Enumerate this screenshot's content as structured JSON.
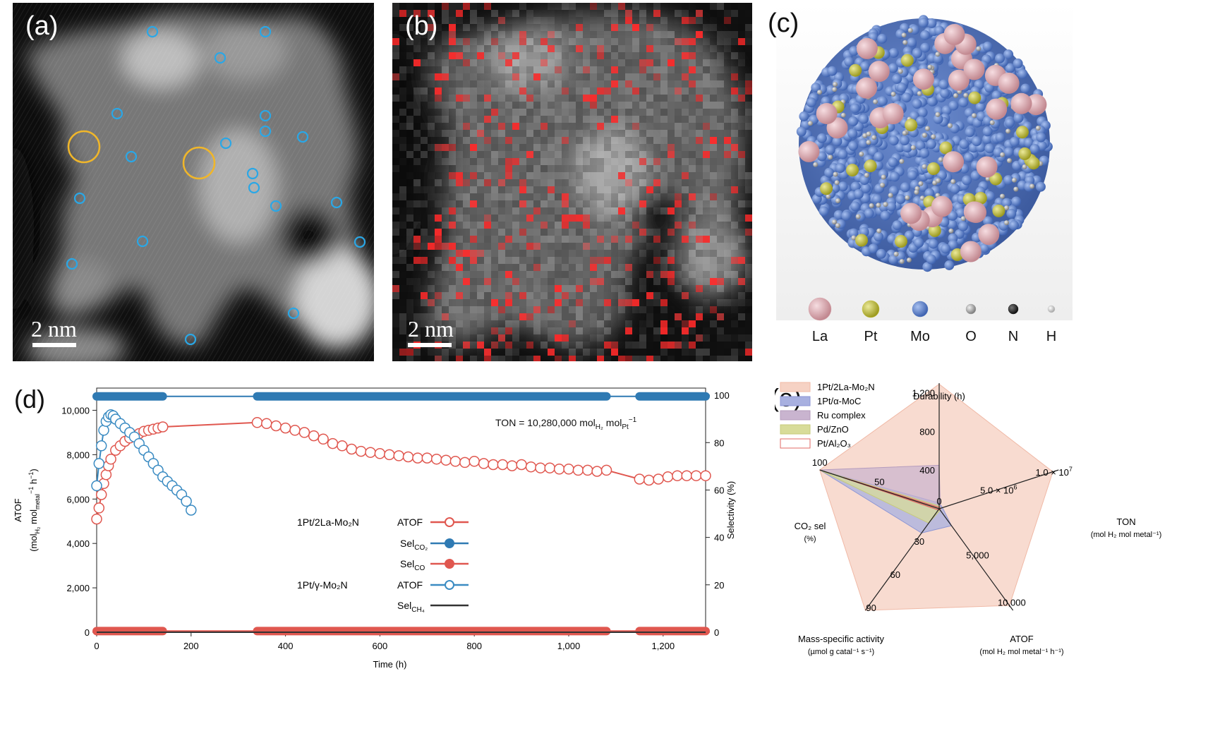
{
  "panel_a": {
    "label": "(a)",
    "scale_text": "2 nm"
  },
  "panel_b": {
    "label": "(b)",
    "scale_text": "2 nm"
  },
  "panel_c": {
    "label": "(c)",
    "atom_legend": [
      "La",
      "Pt",
      "Mo",
      "O",
      "N",
      "H"
    ],
    "atom_colors": [
      "#d9a7ae",
      "#c9c43a",
      "#5b7fc6",
      "#a8a8a8",
      "#2b2b2b",
      "#c8c8c8"
    ]
  },
  "panel_d": {
    "label": "(d)",
    "annotation": "TON = 10,280,000 mol",
    "annotation_sub1": "H₂",
    "annotation_mid": " mol",
    "annotation_sub2": "Pt",
    "annotation_sup": "−1",
    "legend": {
      "group1": "1Pt/2La-Mo₂N",
      "group2": "1Pt/γ-Mo₂N",
      "atof": "ATOF",
      "sel_co2": "Sel",
      "sel_co2_sub": "CO₂",
      "sel_co": "Sel",
      "sel_co_sub": "CO",
      "sel_ch4": "Sel",
      "sel_ch4_sub": "CH₄",
      "atof2": "ATOF"
    }
  },
  "panel_e": {
    "label": "(e)",
    "legend": [
      "1Pt/2La-Mo₂N",
      "1Pt/α-MoC",
      "Ru complex",
      "Pd/ZnO",
      "Pt/Al₂O₃"
    ],
    "legend_colors": [
      "#f6d2c4",
      "#a8b0e0",
      "#c9b4cf",
      "#d8dc99",
      "#ffffff"
    ],
    "legend_borders": [
      "#f0b9a6",
      "#8c95d4",
      "#b59cbd",
      "#c7cb7a",
      "#e06a66"
    ]
  },
  "chart_data": [
    {
      "type": "scatter",
      "panel": "d",
      "xlabel": "Time (h)",
      "ylabel_left": "ATOF (mol H₂ mol metal⁻¹ h⁻¹)",
      "ylabel_right": "Selectivity (%)",
      "xlim": [
        0,
        1290
      ],
      "ylim_left": [
        0,
        11000
      ],
      "ylim_right": [
        0,
        103
      ],
      "x_ticks": [
        "0",
        "200",
        "400",
        "600",
        "800",
        "1,000",
        "1,200"
      ],
      "x_tick_values": [
        0,
        200,
        400,
        600,
        800,
        1000,
        1200
      ],
      "y_left_ticks": [
        "0",
        "2,000",
        "4,000",
        "6,000",
        "8,000",
        "10,000"
      ],
      "y_left_tick_values": [
        0,
        2000,
        4000,
        6000,
        8000,
        10000
      ],
      "y_right_ticks": [
        "0",
        "20",
        "40",
        "60",
        "80",
        "100"
      ],
      "y_right_tick_values": [
        0,
        20,
        40,
        60,
        80,
        100
      ],
      "series": [
        {
          "name": "1Pt/2La-Mo₂N ATOF",
          "axis": "left",
          "color": "#e0574f",
          "marker": "open-circle",
          "x": [
            0,
            5,
            10,
            15,
            20,
            25,
            30,
            40,
            50,
            60,
            70,
            80,
            90,
            100,
            110,
            120,
            130,
            140,
            340,
            360,
            380,
            400,
            420,
            440,
            460,
            480,
            500,
            520,
            540,
            560,
            580,
            600,
            620,
            640,
            660,
            680,
            700,
            720,
            740,
            760,
            780,
            800,
            820,
            840,
            860,
            880,
            900,
            920,
            940,
            960,
            980,
            1000,
            1020,
            1040,
            1060,
            1080,
            1150,
            1170,
            1190,
            1210,
            1230,
            1250,
            1270,
            1290
          ],
          "y": [
            5100,
            5600,
            6200,
            6700,
            7100,
            7500,
            7800,
            8200,
            8400,
            8600,
            8750,
            8850,
            8950,
            9050,
            9100,
            9150,
            9200,
            9250,
            9450,
            9400,
            9300,
            9200,
            9100,
            9000,
            8850,
            8700,
            8500,
            8400,
            8250,
            8150,
            8100,
            8050,
            8000,
            7950,
            7900,
            7850,
            7850,
            7800,
            7750,
            7700,
            7650,
            7700,
            7600,
            7550,
            7550,
            7500,
            7550,
            7450,
            7400,
            7400,
            7350,
            7350,
            7300,
            7300,
            7250,
            7300,
            6900,
            6850,
            6900,
            7000,
            7050,
            7050,
            7050,
            7050
          ]
        },
        {
          "name": "1Pt/γ-Mo₂N ATOF",
          "axis": "left",
          "color": "#3a8bc2",
          "marker": "open-circle",
          "x": [
            0,
            5,
            10,
            15,
            20,
            25,
            30,
            35,
            40,
            50,
            60,
            70,
            80,
            90,
            100,
            110,
            120,
            130,
            140,
            150,
            160,
            170,
            180,
            190,
            200
          ],
          "y": [
            6600,
            7600,
            8400,
            9100,
            9500,
            9700,
            9800,
            9750,
            9600,
            9400,
            9200,
            9000,
            8800,
            8500,
            8200,
            7900,
            7600,
            7300,
            7000,
            6800,
            6600,
            6400,
            6200,
            5900,
            5500
          ]
        },
        {
          "name": "Sel CO₂",
          "axis": "right",
          "color": "#2f7ab3",
          "marker": "filled-circle",
          "x": [
            0,
            140,
            340,
            1080,
            1150,
            1290
          ],
          "y": [
            99.5,
            99.5,
            99.5,
            99.5,
            99.5,
            99.5
          ]
        },
        {
          "name": "Sel CO",
          "axis": "right",
          "color": "#e0574f",
          "marker": "filled-circle",
          "x": [
            0,
            140,
            340,
            1080,
            1150,
            1290
          ],
          "y": [
            0.5,
            0.5,
            0.5,
            0.5,
            0.5,
            0.5
          ]
        },
        {
          "name": "Sel CH₄",
          "axis": "right",
          "color": "#333333",
          "marker": "line",
          "x": [
            0,
            1290
          ],
          "y": [
            0,
            0
          ]
        }
      ]
    },
    {
      "type": "radar",
      "panel": "e",
      "axes": [
        {
          "label": "Durability (h)",
          "ticks": [
            "400",
            "800",
            "1,200"
          ],
          "tick_values": [
            400,
            800,
            1200
          ],
          "max": 1300
        },
        {
          "label": "TON",
          "unit": "(mol H₂ mol metal⁻¹)",
          "ticks": [
            "5.0 × 10",
            "1.0 × 10"
          ],
          "tick_exp": [
            "6",
            "7"
          ],
          "tick_values": [
            5000000,
            10000000
          ],
          "max": 10800000
        },
        {
          "label": "ATOF",
          "unit": "(mol H₂ mol metal⁻¹ h⁻¹)",
          "ticks": [
            "5,000",
            "10,000"
          ],
          "tick_values": [
            5000,
            10000
          ],
          "max": 10800
        },
        {
          "label": "Mass-specific activity",
          "unit": "(µmol g catal⁻¹ s⁻¹)",
          "ticks": [
            "30",
            "60",
            "90"
          ],
          "tick_values": [
            30,
            60,
            90
          ],
          "max": 92
        },
        {
          "label": "CO₂ sel",
          "unit": "(%)",
          "ticks": [
            "0",
            "50",
            "100"
          ],
          "tick_values": [
            0,
            50,
            100
          ],
          "max": 100
        }
      ],
      "series": [
        {
          "name": "1Pt/2La-Mo₂N",
          "values": [
            1290,
            10280000,
            10280,
            92,
            100
          ]
        },
        {
          "name": "1Pt/α-MoC",
          "values": [
            60,
            300000,
            1800,
            22,
            100
          ]
        },
        {
          "name": "Ru complex",
          "values": [
            450,
            80000,
            200,
            1,
            100
          ]
        },
        {
          "name": "Pd/ZnO",
          "values": [
            30,
            30000,
            150,
            13,
            100
          ]
        },
        {
          "name": "Pt/Al₂O₃",
          "values": [
            5,
            5000,
            50,
            1,
            80
          ]
        }
      ]
    }
  ]
}
